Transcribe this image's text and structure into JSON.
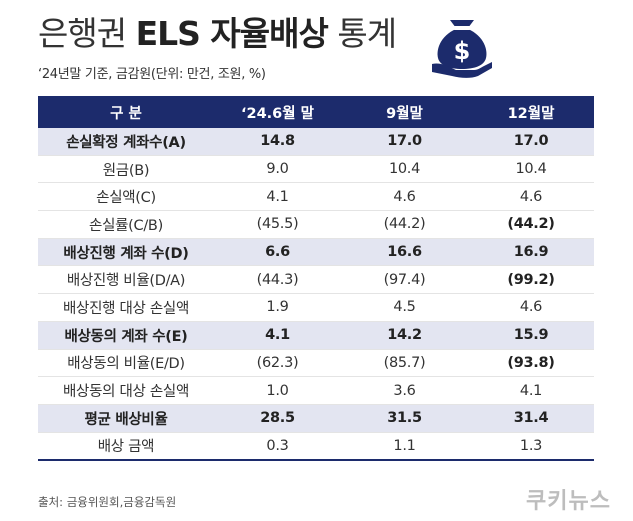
{
  "header": {
    "title_light": "은행권 ",
    "title_bold": "ELS 자율배상",
    "title_end": " 통계",
    "subtitle": "‘24년말 기준, 금감원(단위: 만건, 조원, %)"
  },
  "icon": {
    "name": "money-bag-hand-icon",
    "color": "#1c2b6c",
    "symbol": "$"
  },
  "colors": {
    "header_bg": "#1c2b6c",
    "highlight_row": "#e3e5f1",
    "line": "#e4e4e4"
  },
  "table": {
    "headers": [
      "구 분",
      "‘24.6월 말",
      "9월말",
      "12월말"
    ],
    "rows": [
      {
        "label": "손실확정 계좌수(A)",
        "values": [
          "14.8",
          "17.0",
          "17.0"
        ],
        "highlight": true,
        "bold": [
          false,
          true,
          true
        ]
      },
      {
        "label": "원금(B)",
        "values": [
          "9.0",
          "10.4",
          "10.4"
        ],
        "highlight": false,
        "bold": [
          false,
          false,
          false
        ]
      },
      {
        "label": "손실액(C)",
        "values": [
          "4.1",
          "4.6",
          "4.6"
        ],
        "highlight": false,
        "bold": [
          false,
          false,
          false
        ]
      },
      {
        "label": "손실률(C/B)",
        "values": [
          "(45.5)",
          "(44.2)",
          "(44.2)"
        ],
        "highlight": false,
        "bold": [
          false,
          false,
          true
        ]
      },
      {
        "label": "배상진행 계좌 수(D)",
        "values": [
          "6.6",
          "16.6",
          "16.9"
        ],
        "highlight": true,
        "bold": [
          false,
          true,
          true
        ]
      },
      {
        "label": "배상진행 비율(D/A)",
        "values": [
          "(44.3)",
          "(97.4)",
          "(99.2)"
        ],
        "highlight": false,
        "bold": [
          false,
          false,
          true
        ]
      },
      {
        "label": "배상진행 대상 손실액",
        "values": [
          "1.9",
          "4.5",
          "4.6"
        ],
        "highlight": false,
        "bold": [
          false,
          false,
          false
        ]
      },
      {
        "label": "배상동의 계좌 수(E)",
        "values": [
          "4.1",
          "14.2",
          "15.9"
        ],
        "highlight": true,
        "bold": [
          false,
          true,
          true
        ]
      },
      {
        "label": "배상동의 비율(E/D)",
        "values": [
          "(62.3)",
          "(85.7)",
          "(93.8)"
        ],
        "highlight": false,
        "bold": [
          false,
          false,
          true
        ]
      },
      {
        "label": "배상동의 대상 손실액",
        "values": [
          "1.0",
          "3.6",
          "4.1"
        ],
        "highlight": false,
        "bold": [
          false,
          false,
          false
        ]
      },
      {
        "label": "평균 배상비율",
        "values": [
          "28.5",
          "31.5",
          "31.4"
        ],
        "highlight": true,
        "bold": [
          true,
          false,
          true
        ]
      },
      {
        "label": "배상 금액",
        "values": [
          "0.3",
          "1.1",
          "1.3"
        ],
        "highlight": false,
        "bold": [
          false,
          false,
          false
        ]
      }
    ]
  },
  "footer": {
    "source": "출처: 금융위원회,금융감독원",
    "logo": "쿠키뉴스"
  }
}
